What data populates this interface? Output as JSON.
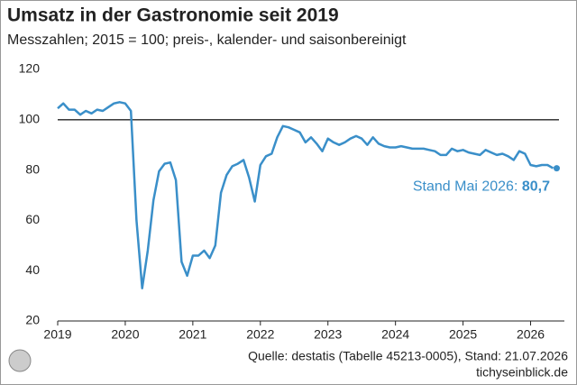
{
  "chart_data": {
    "type": "line",
    "title": "Umsatz in der Gastronomie seit 2019",
    "subtitle": "Messzahlen; 2015 = 100; preis-, kalender- und saisonbereinigt",
    "x": [
      2019,
      2019.083,
      2019.167,
      2019.25,
      2019.333,
      2019.417,
      2019.5,
      2019.583,
      2019.667,
      2019.75,
      2019.833,
      2019.917,
      2020,
      2020.083,
      2020.167,
      2020.25,
      2020.333,
      2020.417,
      2020.5,
      2020.583,
      2020.667,
      2020.75,
      2020.833,
      2020.917,
      2021,
      2021.083,
      2021.167,
      2021.25,
      2021.333,
      2021.417,
      2021.5,
      2021.583,
      2021.667,
      2021.75,
      2021.833,
      2021.917,
      2022,
      2022.083,
      2022.167,
      2022.25,
      2022.333,
      2022.417,
      2022.5,
      2022.583,
      2022.667,
      2022.75,
      2022.833,
      2022.917,
      2023,
      2023.083,
      2023.167,
      2023.25,
      2023.333,
      2023.417,
      2023.5,
      2023.583,
      2023.667,
      2023.75,
      2023.833,
      2023.917,
      2024,
      2024.083,
      2024.167,
      2024.25,
      2024.333,
      2024.417,
      2024.5,
      2024.583,
      2024.667,
      2024.75,
      2024.833,
      2024.917,
      2025,
      2025.083,
      2025.167,
      2025.25,
      2025.333,
      2025.417,
      2025.5,
      2025.583,
      2025.667,
      2025.75,
      2025.833,
      2025.917,
      2026,
      2026.083,
      2026.167,
      2026.25,
      2026.333
    ],
    "series": [
      {
        "name": "Umsatz",
        "color": "#3a8fc9",
        "values": [
          104.5,
          106.5,
          104,
          104,
          102,
          103.5,
          102.5,
          104,
          103.5,
          105,
          106.5,
          107,
          106.5,
          103.5,
          60,
          33,
          48,
          68,
          79.5,
          82.5,
          83,
          76,
          43.5,
          38,
          46,
          46,
          48,
          45,
          50,
          71,
          78,
          81.5,
          82.5,
          84,
          77,
          67.5,
          82,
          85.5,
          86.5,
          93,
          97.5,
          97,
          96,
          95,
          91,
          93,
          90.5,
          87.5,
          92.5,
          91,
          90,
          91,
          92.5,
          93.5,
          92.5,
          90,
          93,
          90.5,
          89.5,
          89,
          89,
          89.5,
          89,
          88.5,
          88.5,
          88.5,
          88,
          87.5,
          86,
          86,
          88.5,
          87.5,
          88,
          87,
          86.5,
          86,
          88,
          87,
          86,
          86.5,
          85.5,
          84,
          87.5,
          86.5,
          82,
          81.5,
          82,
          82,
          80.7
        ]
      }
    ],
    "xlim": [
      2019,
      2026.5
    ],
    "xticks": [
      2019,
      2020,
      2021,
      2022,
      2023,
      2024,
      2025,
      2026
    ],
    "ylim": [
      20,
      120
    ],
    "yticks": [
      20,
      40,
      60,
      80,
      100,
      120
    ],
    "reference_line": 100,
    "annotation": {
      "text": "Stand Mai 2026:",
      "value_label": "80,7"
    },
    "source": "Quelle: destatis (Tabelle 45213-0005), Stand: 21.07.2026",
    "publisher": "tichyseinblick.de"
  }
}
